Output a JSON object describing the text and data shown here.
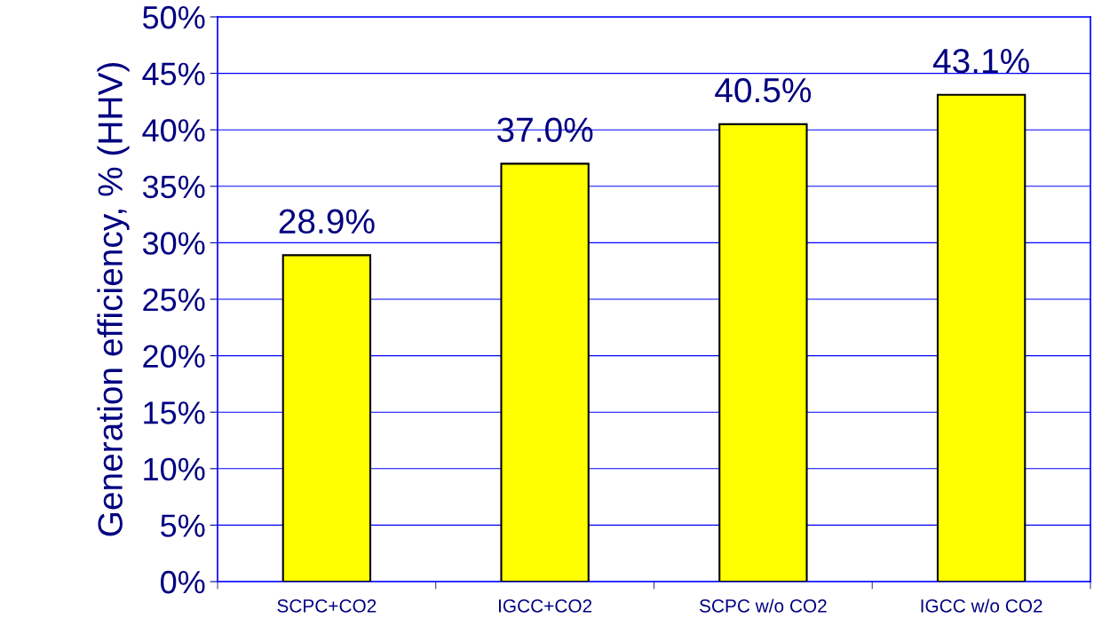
{
  "chart_data": {
    "type": "bar",
    "ylabel": "Generation efficiency, % (HHV)",
    "categories": [
      "SCPC+CO2",
      "IGCC+CO2",
      "SCPC w/o CO2",
      "IGCC w/o CO2"
    ],
    "values": [
      28.9,
      37.0,
      40.5,
      43.1
    ],
    "value_labels": [
      "28.9%",
      "37.0%",
      "40.5%",
      "43.1%"
    ],
    "color": "#ffff00",
    "ylim": [
      0,
      50
    ],
    "yticks": [
      {
        "value": 0,
        "label": "0%"
      },
      {
        "value": 5,
        "label": "5%"
      },
      {
        "value": 10,
        "label": "10%"
      },
      {
        "value": 15,
        "label": "15%"
      },
      {
        "value": 20,
        "label": "20%"
      },
      {
        "value": 25,
        "label": "25%"
      },
      {
        "value": 30,
        "label": "30%"
      },
      {
        "value": 35,
        "label": "35%"
      },
      {
        "value": 40,
        "label": "40%"
      },
      {
        "value": 45,
        "label": "45%"
      },
      {
        "value": 50,
        "label": "50%"
      }
    ],
    "grid": "y",
    "legend": false
  }
}
